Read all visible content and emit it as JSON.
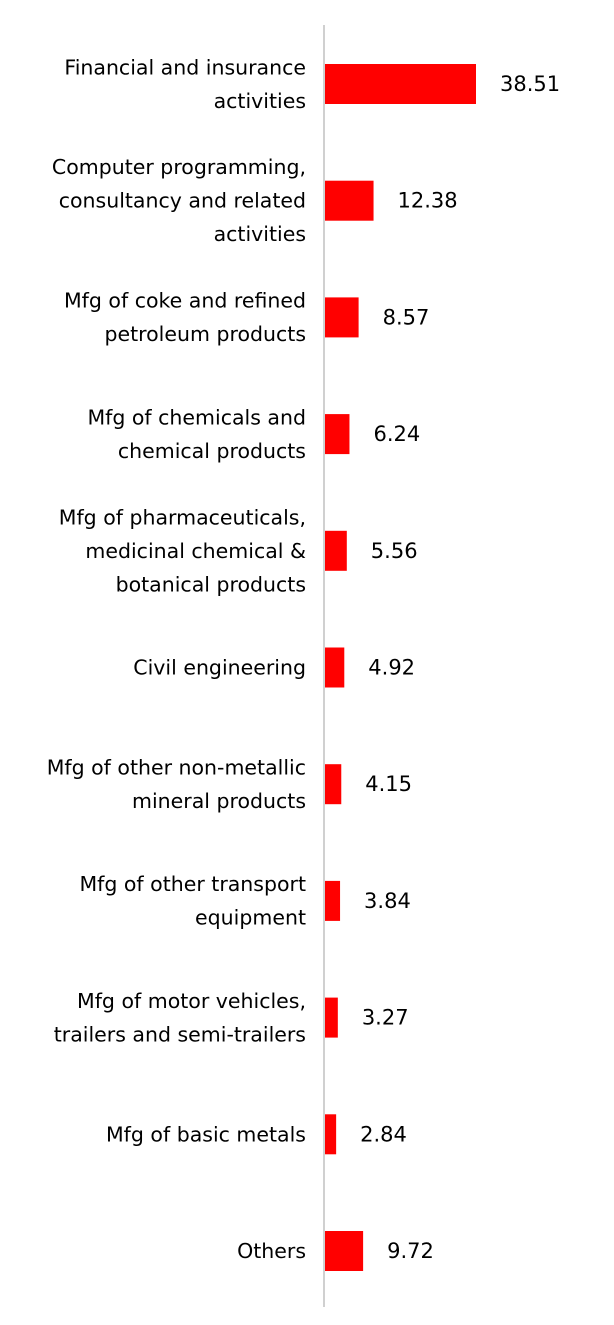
{
  "chart_data": {
    "type": "bar",
    "orientation": "horizontal",
    "title": "",
    "xlabel": "",
    "ylabel": "",
    "categories": [
      [
        "Financial and insurance",
        "activities"
      ],
      [
        "Computer programming,",
        "consultancy and related",
        "activities"
      ],
      [
        "Mfg of coke and refined",
        "petroleum products"
      ],
      [
        "Mfg of chemicals and",
        "chemical products"
      ],
      [
        "Mfg of pharmaceuticals,",
        "medicinal chemical &",
        "botanical products"
      ],
      [
        "Civil engineering"
      ],
      [
        "Mfg of other non-metallic",
        "mineral products"
      ],
      [
        "Mfg of other transport",
        "equipment"
      ],
      [
        "Mfg of motor vehicles,",
        "trailers and semi-trailers"
      ],
      [
        "Mfg of basic metals"
      ],
      [
        "Others"
      ]
    ],
    "values": [
      38.51,
      12.38,
      8.57,
      6.24,
      5.56,
      4.92,
      4.15,
      3.84,
      3.27,
      2.84,
      9.72
    ],
    "value_labels": [
      "38.51",
      "12.38",
      "8.57",
      "6.24",
      "5.56",
      "4.92",
      "4.15",
      "3.84",
      "3.27",
      "2.84",
      "9.72"
    ],
    "xlim": [
      0,
      38.51
    ],
    "bar_color": "#ff0000",
    "axis_color": "#d0d0d0",
    "grid": false,
    "legend": "none"
  }
}
